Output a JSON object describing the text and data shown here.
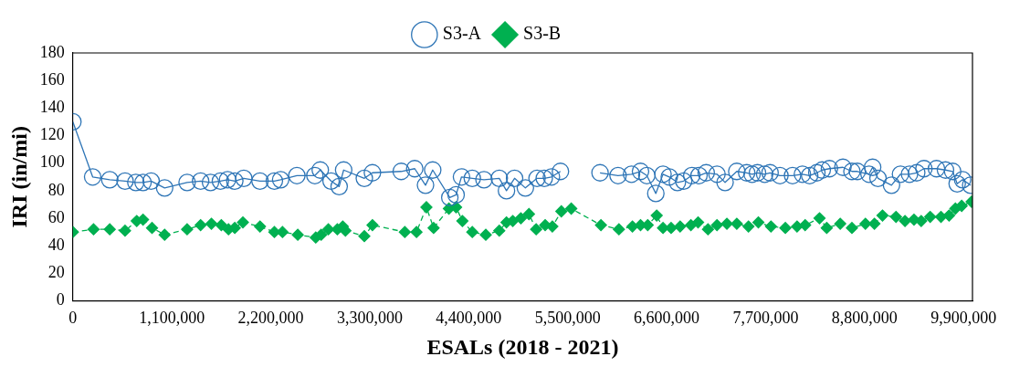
{
  "chart_data": {
    "type": "line",
    "xlabel": "ESALs (2018 - 2021)",
    "ylabel": "IRI (in/mi)",
    "xlim": [
      0,
      10000000
    ],
    "xticks": [
      0,
      {
        "value": 1100000,
        "label": "1,100,000"
      },
      {
        "value": 2200000,
        "label": "2,200,000"
      },
      {
        "value": 3300000,
        "label": "3,300,000"
      },
      {
        "value": 4400000,
        "label": "4,400,000"
      },
      {
        "value": 5500000,
        "label": "5,500,000"
      },
      {
        "value": 6600000,
        "label": "6,600,000"
      },
      {
        "value": 7700000,
        "label": "7,700,000"
      },
      {
        "value": 8800000,
        "label": "8,800,000"
      },
      {
        "value": 9900000,
        "label": "9,900,000"
      }
    ],
    "ylim": [
      0,
      180
    ],
    "yticks": [
      0,
      20,
      40,
      60,
      80,
      100,
      120,
      140,
      160,
      180
    ],
    "grid": false,
    "legend": "top",
    "series": [
      {
        "name": "S3-A",
        "color": "#2e75b6",
        "marker": "circle",
        "line_style": "solid",
        "x": [
          0,
          220000,
          410000,
          580000,
          700000,
          780000,
          870000,
          1020000,
          1270000,
          1420000,
          1530000,
          1640000,
          1720000,
          1800000,
          1900000,
          2080000,
          2240000,
          2310000,
          2490000,
          2690000,
          2750000,
          2870000,
          2960000,
          3010000,
          3240000,
          3330000,
          3650000,
          3800000,
          3920000,
          4000000,
          4190000,
          4260000,
          4320000,
          4440000,
          4570000,
          4740000,
          4820000,
          4910000,
          5030000,
          5160000,
          5240000,
          5320000,
          5420000,
          5540000,
          5860000,
          6060000,
          6210000,
          6310000,
          6380000,
          6480000,
          6560000,
          6630000,
          6720000,
          6790000,
          6880000,
          6960000,
          7040000,
          7160000,
          7250000,
          7380000,
          7490000,
          7550000,
          7610000,
          7690000,
          7750000,
          7860000,
          8000000,
          8110000,
          8190000,
          8270000,
          8330000,
          8410000,
          8560000,
          8660000,
          8720000,
          8850000,
          8890000,
          8950000,
          9100000,
          9200000,
          9300000,
          9380000,
          9460000,
          9600000,
          9700000,
          9780000,
          9830000,
          9890000,
          9980000
        ],
        "values": [
          130,
          90,
          88,
          87,
          86,
          86,
          87,
          82,
          86,
          87,
          86,
          87,
          88,
          87,
          89,
          87,
          87,
          88,
          91,
          91,
          95,
          87,
          83,
          95,
          89,
          93,
          94,
          96,
          84,
          95,
          75,
          77,
          90,
          89,
          88,
          89,
          80,
          89,
          82,
          89,
          89,
          90,
          94,
          null,
          93,
          91,
          92,
          94,
          91,
          78,
          92,
          90,
          86,
          87,
          91,
          91,
          93,
          92,
          86,
          94,
          93,
          92,
          93,
          92,
          93,
          91,
          91,
          92,
          91,
          93,
          95,
          96,
          97,
          94,
          94,
          92,
          97,
          89,
          84,
          92,
          92,
          93,
          96,
          96,
          95,
          94,
          85,
          88,
          84
        ]
      },
      {
        "name": "S3-B",
        "color": "#00b050",
        "marker": "diamond",
        "line_style": "dashed",
        "x": [
          0,
          230000,
          410000,
          580000,
          710000,
          780000,
          880000,
          1020000,
          1270000,
          1420000,
          1540000,
          1650000,
          1730000,
          1800000,
          1890000,
          2080000,
          2240000,
          2330000,
          2500000,
          2700000,
          2760000,
          2840000,
          2940000,
          3000000,
          3030000,
          3240000,
          3330000,
          3690000,
          3820000,
          3930000,
          4010000,
          4180000,
          4260000,
          4330000,
          4440000,
          4590000,
          4740000,
          4820000,
          4890000,
          4980000,
          5070000,
          5150000,
          5250000,
          5330000,
          5430000,
          5540000,
          5870000,
          6070000,
          6220000,
          6310000,
          6390000,
          6490000,
          6560000,
          6650000,
          6750000,
          6870000,
          6950000,
          7060000,
          7160000,
          7270000,
          7380000,
          7510000,
          7620000,
          7760000,
          7920000,
          8050000,
          8140000,
          8300000,
          8380000,
          8530000,
          8660000,
          8810000,
          8910000,
          9000000,
          9150000,
          9250000,
          9350000,
          9430000,
          9530000,
          9650000,
          9740000,
          9810000,
          9880000,
          9990000
        ],
        "values": [
          50,
          52,
          52,
          51,
          58,
          59,
          53,
          48,
          52,
          55,
          56,
          55,
          52,
          53,
          57,
          54,
          50,
          50,
          48,
          46,
          48,
          52,
          52,
          54,
          51,
          47,
          55,
          50,
          50,
          68,
          53,
          67,
          68,
          58,
          50,
          48,
          51,
          57,
          58,
          60,
          63,
          52,
          55,
          54,
          65,
          67,
          55,
          52,
          54,
          55,
          55,
          62,
          53,
          53,
          54,
          55,
          57,
          52,
          55,
          56,
          56,
          54,
          57,
          54,
          53,
          54,
          55,
          60,
          53,
          56,
          53,
          56,
          56,
          62,
          61,
          58,
          59,
          58,
          61,
          61,
          62,
          67,
          69,
          72
        ]
      }
    ]
  }
}
